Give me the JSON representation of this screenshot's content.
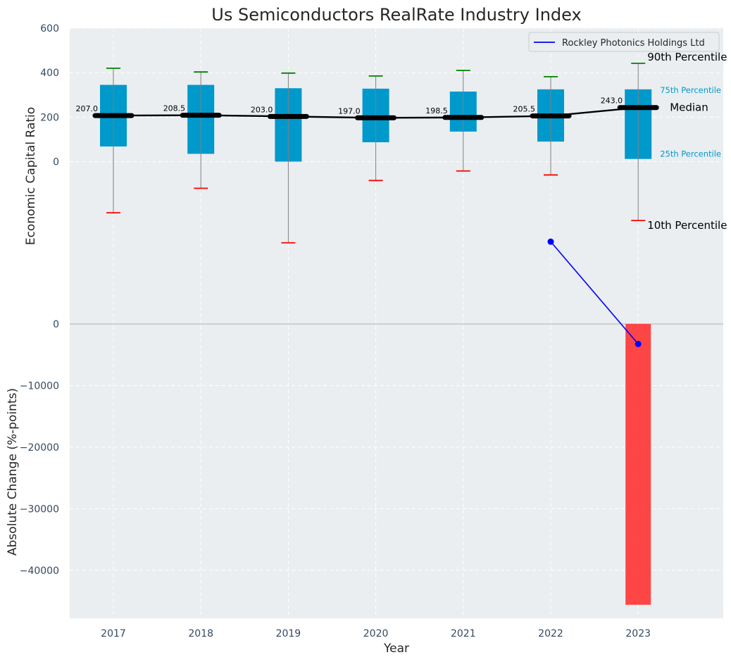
{
  "chart_data": {
    "title": "Us Semiconductors RealRate Industry Index",
    "xlabel": "Year",
    "ylabel_top": "Economic Capital Ratio",
    "ylabel_bottom": "Absolute Change (%-points)",
    "categories": [
      "2017",
      "2018",
      "2019",
      "2020",
      "2021",
      "2022",
      "2023"
    ],
    "top_panel": {
      "type": "box",
      "ylim": [
        -730,
        600
      ],
      "yticks": [
        0,
        200,
        400,
        600
      ],
      "p10": [
        -230,
        -120,
        -365,
        -85,
        -42,
        -60,
        -265
      ],
      "p25": [
        68,
        35,
        0,
        87,
        135,
        90,
        12
      ],
      "median": [
        207.0,
        208.5,
        203.0,
        197.0,
        198.5,
        205.5,
        243.0
      ],
      "median_labels": [
        "207.0",
        "208.5",
        "203.0",
        "197.0",
        "198.5",
        "205.5",
        "243.0"
      ],
      "p75": [
        345,
        345,
        330,
        328,
        315,
        325,
        325
      ],
      "p90": [
        420,
        403,
        398,
        385,
        410,
        382,
        442
      ],
      "box_color": "#0099cc",
      "whisker_high_color": "#008000",
      "whisker_low_color": "#ff0000",
      "median_line_color": "#000000",
      "company": {
        "name": "Rockley Photonics Holdings Ltd",
        "x": [
          "2022",
          "2023"
        ],
        "y": [
          -360,
          -820
        ],
        "color": "#0000ff"
      },
      "annotations": {
        "p90": "90th Percentile",
        "p75": "75th Percentile",
        "median": "Median",
        "p25": "25th Percentile",
        "p10": "10th Percentile"
      },
      "legend_position": "top-right",
      "grid": true
    },
    "bottom_panel": {
      "type": "bar",
      "ylim": [
        -47800,
        0
      ],
      "yticks": [
        0,
        -10000,
        -20000,
        -30000,
        -40000
      ],
      "ytick_labels": [
        "0",
        "−10000",
        "−20000",
        "−30000",
        "−40000"
      ],
      "values": [
        0,
        0,
        0,
        0,
        0,
        0,
        -45600
      ],
      "bar_color": "#ff3b3b",
      "grid": true
    },
    "background": "#eaeef0"
  }
}
